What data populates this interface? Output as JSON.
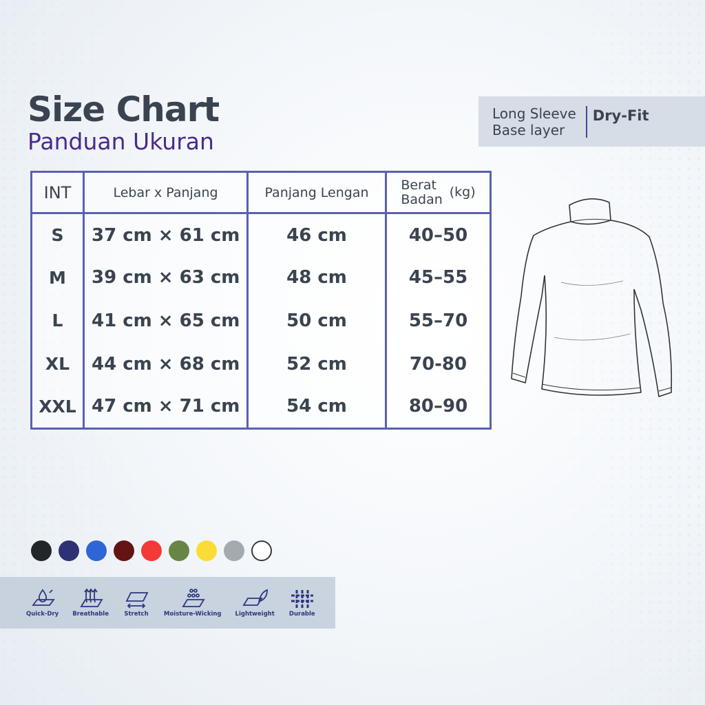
{
  "header": {
    "title": "Size Chart",
    "subtitle": "Panduan Ukuran"
  },
  "badge": {
    "line1": "Long Sleeve",
    "line2": "Base layer",
    "material": "Dry-Fit"
  },
  "table": {
    "headers": {
      "int": "INT",
      "size": "Lebar x Panjang",
      "sleeve": "Panjang Lengan",
      "weight_line1": "Berat",
      "weight_line2": "Badan",
      "weight_unit": "(kg)"
    },
    "rows": [
      {
        "int": "S",
        "size": "37 cm × 61 cm",
        "sleeve": "46 cm",
        "weight": "40–50"
      },
      {
        "int": "M",
        "size": "39 cm × 63 cm",
        "sleeve": "48 cm",
        "weight": "45–55"
      },
      {
        "int": "L",
        "size": "41 cm × 65 cm",
        "sleeve": "50 cm",
        "weight": "55–70"
      },
      {
        "int": "XL",
        "size": "44 cm × 68 cm",
        "sleeve": "52 cm",
        "weight": "70-80"
      },
      {
        "int": "XXL",
        "size": "47 cm × 71 cm",
        "sleeve": "54 cm",
        "weight": "80–90"
      }
    ]
  },
  "colors": [
    "#222628",
    "#2e3272",
    "#2f66d6",
    "#641412",
    "#f43a36",
    "#678646",
    "#fbdc36",
    "#a4aaaf",
    "#ffffff"
  ],
  "features": [
    {
      "icon": "quick-dry-icon",
      "label": "Quick-Dry"
    },
    {
      "icon": "breathable-icon",
      "label": "Breathable"
    },
    {
      "icon": "stretch-icon",
      "label": "Stretch"
    },
    {
      "icon": "moisture-wicking-icon",
      "label": "Moisture-Wicking"
    },
    {
      "icon": "lightweight-icon",
      "label": "Lightweight"
    },
    {
      "icon": "durable-icon",
      "label": "Durable"
    }
  ]
}
